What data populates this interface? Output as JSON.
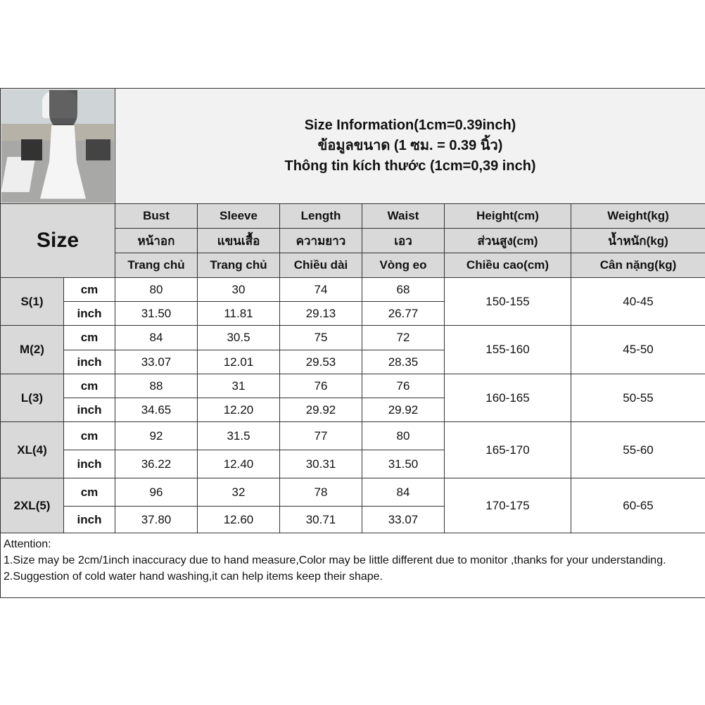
{
  "title": {
    "line1": "Size Information(1cm=0.39inch)",
    "line2": "ข้อมูลขนาด (1 ซม. = 0.39 นิ้ว)",
    "line3": "Thông tin kích thước (1cm=0,39 inch)"
  },
  "size_label": "Size",
  "columns": [
    {
      "en": "Bust",
      "th": "หน้าอก",
      "vi": "Trang chủ"
    },
    {
      "en": "Sleeve",
      "th": "แขนเสื้อ",
      "vi": "Trang chủ"
    },
    {
      "en": "Length",
      "th": "ความยาว",
      "vi": "Chiều dài"
    },
    {
      "en": "Waist",
      "th": "เอว",
      "vi": "Vòng eo"
    },
    {
      "en": "Height(cm)",
      "th": "ส่วนสูง(cm)",
      "vi": "Chiều cao(cm)"
    },
    {
      "en": "Weight(kg)",
      "th": "น้ำหนัก(kg)",
      "vi": "Cân nặng(kg)"
    }
  ],
  "rows": [
    {
      "size": "S(1)",
      "cm": [
        "80",
        "30",
        "74",
        "68"
      ],
      "inch": [
        "31.50",
        "11.81",
        "29.13",
        "26.77"
      ],
      "height": "150-155",
      "weight": "40-45"
    },
    {
      "size": "M(2)",
      "cm": [
        "84",
        "30.5",
        "75",
        "72"
      ],
      "inch": [
        "33.07",
        "12.01",
        "29.53",
        "28.35"
      ],
      "height": "155-160",
      "weight": "45-50"
    },
    {
      "size": "L(3)",
      "cm": [
        "88",
        "31",
        "76",
        "76"
      ],
      "inch": [
        "34.65",
        "12.20",
        "29.92",
        "29.92"
      ],
      "height": "160-165",
      "weight": "50-55"
    },
    {
      "size": "XL(4)",
      "cm": [
        "92",
        "31.5",
        "77",
        "80"
      ],
      "inch": [
        "36.22",
        "12.40",
        "30.31",
        "31.50"
      ],
      "height": "165-170",
      "weight": "55-60"
    },
    {
      "size": "2XL(5)",
      "cm": [
        "96",
        "32",
        "78",
        "84"
      ],
      "inch": [
        "37.80",
        "12.60",
        "30.71",
        "33.07"
      ],
      "height": "170-175",
      "weight": "60-65"
    }
  ],
  "units": {
    "cm": "cm",
    "inch": "inch"
  },
  "attention": {
    "heading": "Attention:",
    "note1": "1.Size may be 2cm/1inch inaccuracy due to hand measure,Color may be little different due to monitor ,thanks for your understanding.",
    "note2": "2.Suggestion of cold water hand washing,it can help items keep their shape."
  }
}
